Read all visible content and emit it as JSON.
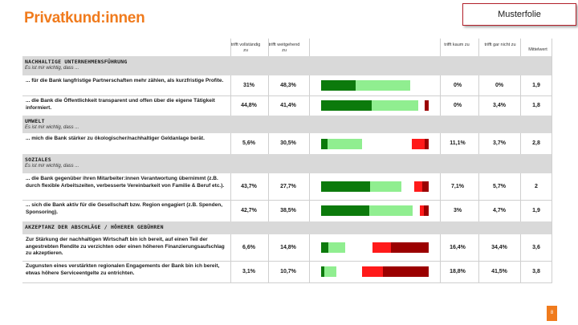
{
  "page": {
    "title": "Privatkund:innen",
    "badge": "Musterfolie",
    "page_number": "8"
  },
  "chart_data": {
    "type": "bar",
    "stacked": true,
    "diverging": true,
    "columns": [
      "trifft vollständig zu",
      "trifft weitgehend zu",
      "trifft kaum zu",
      "trifft gar nicht zu",
      "Mittelwert"
    ],
    "colors": {
      "vollstaendig": "#0c7a0c",
      "weitgehend": "#90ee90",
      "kaum": "#ff1a1a",
      "gar_nicht": "#9b0000"
    },
    "sections": [
      {
        "name": "NACHHALTIGE UNTERNEHMENSFÜHRUNG",
        "subtitle": "Es ist mir wichtig, dass ...",
        "rows": [
          {
            "label": "... für die Bank langfristige Partnerschaften mehr zählen, als kurzfristige Profite.",
            "vollstaendig": 31,
            "weitgehend": 48.3,
            "kaum": 0,
            "gar_nicht": 0,
            "mean": 1.9,
            "display": [
              "31%",
              "48,3%",
              "0%",
              "0%",
              "1,9"
            ]
          },
          {
            "label": "... die Bank die Öffentlichkeit transparent und offen über die eigene Tätigkeit informiert.",
            "vollstaendig": 44.8,
            "weitgehend": 41.4,
            "kaum": 0,
            "gar_nicht": 3.4,
            "mean": 1.8,
            "display": [
              "44,8%",
              "41,4%",
              "0%",
              "3,4%",
              "1,8"
            ]
          }
        ]
      },
      {
        "name": "UMWELT",
        "subtitle": "Es ist mir wichtig, dass ...",
        "rows": [
          {
            "label": "... mich die Bank stärker zu ökologischer/nachhaltiger Geldanlage berät.",
            "vollstaendig": 5.6,
            "weitgehend": 30.5,
            "kaum": 11.1,
            "gar_nicht": 3.7,
            "mean": 2.8,
            "display": [
              "5,6%",
              "30,5%",
              "11,1%",
              "3,7%",
              "2,8"
            ]
          }
        ]
      },
      {
        "name": "SOZIALES",
        "subtitle": "Es ist mir wichtig, dass ...",
        "rows": [
          {
            "label": "... die Bank gegenüber ihren Mitarbeiter:innen Verantwortung übernimmt (z.B. durch flexible Arbeitszeiten, verbesserte Vereinbarkeit von Familie & Beruf etc.).",
            "vollstaendig": 43.7,
            "weitgehend": 27.7,
            "kaum": 7.1,
            "gar_nicht": 5.7,
            "mean": 2,
            "display": [
              "43,7%",
              "27,7%",
              "7,1%",
              "5,7%",
              "2"
            ]
          },
          {
            "label": "... sich die Bank aktiv für die Gesellschaft bzw. Region engagiert (z.B. Spenden, Sponsoring).",
            "vollstaendig": 42.7,
            "weitgehend": 38.5,
            "kaum": 3,
            "gar_nicht": 4.7,
            "mean": 1.9,
            "display": [
              "42,7%",
              "38,5%",
              "3%",
              "4,7%",
              "1,9"
            ]
          }
        ]
      },
      {
        "name": "AKZEPTANZ DER ABSCHLÄGE / HÖHERER GEBÜHREN",
        "subtitle": "",
        "rows": [
          {
            "label": "Zur Stärkung der nachhaltigen Wirtschaft bin ich bereit, auf einen Teil der angestrebten Rendite zu verzichten oder einen höheren Finanzierungsaufschlag zu akzeptieren.",
            "vollstaendig": 6.6,
            "weitgehend": 14.8,
            "kaum": 16.4,
            "gar_nicht": 34.4,
            "mean": 3.6,
            "display": [
              "6,6%",
              "14,8%",
              "16,4%",
              "34,4%",
              "3,6"
            ]
          },
          {
            "label": "Zugunsten eines verstärkten regionalen Engagements der Bank bin ich bereit, etwas höhere Serviceentgelte zu entrichten.",
            "vollstaendig": 3.1,
            "weitgehend": 10.7,
            "kaum": 18.8,
            "gar_nicht": 41.5,
            "mean": 3.8,
            "display": [
              "3,1%",
              "10,7%",
              "18,8%",
              "41,5%",
              "3,8"
            ]
          }
        ]
      }
    ]
  }
}
